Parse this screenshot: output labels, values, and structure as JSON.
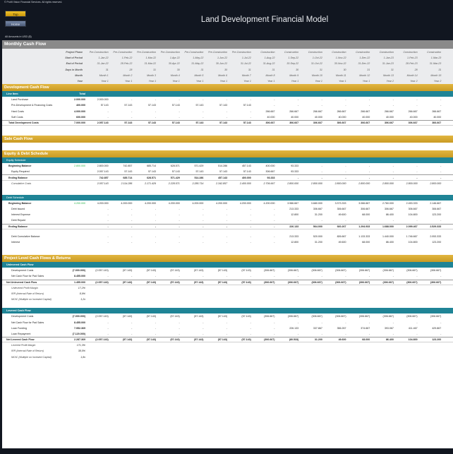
{
  "copyright": "© Profit Vision Financial Services. All rights reserved.",
  "buttons": {
    "top": "Top",
    "home": "Home"
  },
  "title": "Land Development Financial Model",
  "amounts_note": "All Amounts in USD ($)",
  "section_monthly": "Monthly Cash Flow",
  "header_labels": {
    "phase": "Project Phase",
    "start": "Start of Period",
    "end": "End of Period",
    "days": "Days in Month",
    "month": "Month",
    "year": "Year"
  },
  "periods": {
    "phase": [
      "Pre-Construction",
      "Pre-Construction",
      "Pre-Construction",
      "Pre-Construction",
      "Pre-Construction",
      "Pre-Construction",
      "Pre-Construction",
      "Construction",
      "Construction",
      "Construction",
      "Construction",
      "Construction",
      "Construction",
      "Construction",
      "Construction"
    ],
    "start": [
      "1-Jan-22",
      "1-Feb-22",
      "1-Mar-22",
      "1-Apr-22",
      "1-May-22",
      "1-Jun-22",
      "1-Jul-22",
      "1-Aug-22",
      "1-Sep-22",
      "1-Oct-22",
      "1-Nov-22",
      "1-Dec-22",
      "1-Jan-23",
      "1-Feb-23",
      "1-Mar-23"
    ],
    "end": [
      "31-Jan-22",
      "28-Feb-22",
      "31-Mar-22",
      "30-Apr-22",
      "31-May-22",
      "30-Jun-22",
      "31-Jul-22",
      "31-Aug-22",
      "30-Sep-22",
      "31-Oct-22",
      "30-Nov-22",
      "31-Dec-22",
      "31-Jan-23",
      "28-Feb-23",
      "31-Mar-23"
    ],
    "days": [
      "31",
      "28",
      "31",
      "30",
      "31",
      "30",
      "31",
      "31",
      "30",
      "31",
      "30",
      "31",
      "31",
      "28",
      "31"
    ],
    "month": [
      "Month 1",
      "Month 2",
      "Month 3",
      "Month 4",
      "Month 5",
      "Month 6",
      "Month 7",
      "Month 8",
      "Month 9",
      "Month 10",
      "Month 11",
      "Month 12",
      "Month 13",
      "Month 14",
      "Month 15"
    ],
    "year": [
      "Year 1",
      "Year 1",
      "Year 1",
      "Year 1",
      "Year 1",
      "Year 1",
      "Year 1",
      "Year 1",
      "Year 1",
      "Year 1",
      "Year 1",
      "Year 1",
      "Year 2",
      "Year 2",
      "Year 2"
    ]
  },
  "dev_cf": {
    "title": "Development Cash Flow",
    "col_line": "Line Item",
    "col_total": "Total",
    "rows": [
      {
        "label": "Land Purchase",
        "total": "2.000.000",
        "vals": [
          "2.000.000",
          "-",
          "-",
          "-",
          "-",
          "-",
          "-",
          "-",
          "-",
          "-",
          "-",
          "-",
          "-",
          "-",
          "-"
        ]
      },
      {
        "label": "Pre-Development & Financing Costs",
        "total": "400.000",
        "vals": [
          "57.143",
          "57.143",
          "57.143",
          "57.143",
          "57.143",
          "57.143",
          "57.143",
          "-",
          "-",
          "-",
          "-",
          "-",
          "-",
          "-",
          "-"
        ]
      },
      {
        "label": "Hard Costs",
        "total": "4.000.000",
        "vals": [
          "-",
          "-",
          "-",
          "-",
          "-",
          "-",
          "-",
          "266.667",
          "266.667",
          "266.667",
          "266.667",
          "266.667",
          "266.667",
          "266.667",
          "266.667"
        ]
      },
      {
        "label": "Soft Costs",
        "total": "600.000",
        "vals": [
          "-",
          "-",
          "-",
          "-",
          "-",
          "-",
          "-",
          "40.000",
          "40.000",
          "40.000",
          "40.000",
          "40.000",
          "40.000",
          "40.000",
          "40.000"
        ]
      }
    ],
    "total_row": {
      "label": "Total Development Costs",
      "total": "7.000.000",
      "vals": [
        "2.057.143",
        "57.143",
        "57.143",
        "57.143",
        "57.143",
        "57.143",
        "57.143",
        "306.667",
        "306.667",
        "306.667",
        "306.667",
        "306.667",
        "306.667",
        "306.667",
        "306.667"
      ]
    }
  },
  "sale_cf": {
    "title": "Sale Cash Flow"
  },
  "equity_debt": {
    "title": "Equity & Debt Schedule",
    "equity": {
      "title": "Equity Schedule",
      "beginning": {
        "label": "Beginning Balance",
        "total": "2.800.000",
        "vals": [
          "2.800.000",
          "742.857",
          "685.714",
          "628.571",
          "571.429",
          "514.286",
          "457.143",
          "400.000",
          "93.333",
          "-",
          "-",
          "-",
          "-",
          "-",
          "-"
        ]
      },
      "required": {
        "label": "Equity Required",
        "vals": [
          "2.057.143",
          "57.143",
          "57.143",
          "57.143",
          "57.143",
          "57.143",
          "57.143",
          "306.667",
          "93.333",
          "-",
          "-",
          "-",
          "-",
          "-",
          "-"
        ]
      },
      "ending": {
        "label": "Ending Balance",
        "vals": [
          "742.857",
          "685.714",
          "628.571",
          "571.429",
          "514.286",
          "457.143",
          "400.000",
          "93.333",
          "-",
          "-",
          "-",
          "-",
          "-",
          "-",
          "-"
        ]
      },
      "cumulative": {
        "label": "Cumulative Costs",
        "vals": [
          "2.057.143",
          "2.114.286",
          "2.171.429",
          "2.228.571",
          "2.285.714",
          "2.342.857",
          "2.400.000",
          "2.706.667",
          "2.800.000",
          "2.800.000",
          "2.800.000",
          "2.800.000",
          "2.800.000",
          "2.800.000",
          "2.800.000"
        ]
      }
    },
    "debt": {
      "title": "Debt Schedule",
      "beginning": {
        "label": "Beginning Balance",
        "total": "4.200.000",
        "vals": [
          "4.200.000",
          "4.200.000",
          "4.200.000",
          "4.200.000",
          "4.200.000",
          "4.200.000",
          "4.200.000",
          "4.200.000",
          "3.986.667",
          "3.680.000",
          "3.373.333",
          "3.066.667",
          "2.760.000",
          "2.453.333",
          "2.146.667"
        ]
      },
      "issued": {
        "label": "Debt Issued",
        "vals": [
          "-",
          "-",
          "-",
          "-",
          "-",
          "-",
          "-",
          "-",
          "213.333",
          "306.667",
          "306.667",
          "306.667",
          "306.667",
          "306.667",
          "306.667"
        ]
      },
      "interest_exp": {
        "label": "Interest Expense",
        "vals": [
          "-",
          "-",
          "-",
          "-",
          "-",
          "-",
          "-",
          "-",
          "12.800",
          "31.200",
          "49.600",
          "68.000",
          "86.400",
          "104.800",
          "123.200"
        ]
      },
      "repaid": {
        "label": "Debt Repaid",
        "vals": [
          "-",
          "-",
          "-",
          "-",
          "-",
          "-",
          "-",
          "-",
          "-",
          "-",
          "-",
          "-",
          "-",
          "-",
          "-"
        ]
      },
      "ending": {
        "label": "Ending Balance",
        "vals": [
          "-",
          "-",
          "-",
          "-",
          "-",
          "-",
          "-",
          "-",
          "226.133",
          "564.000",
          "920.267",
          "1.294.933",
          "1.688.000",
          "2.099.467",
          "2.529.333"
        ]
      },
      "cum_balance": {
        "label": "Debt Cumulative Balance",
        "vals": [
          "-",
          "-",
          "-",
          "-",
          "-",
          "-",
          "-",
          "-",
          "213.333",
          "520.000",
          "826.667",
          "1.133.333",
          "1.440.000",
          "1.746.667",
          "2.053.333"
        ]
      },
      "interest": {
        "label": "Interest",
        "vals": [
          "-",
          "-",
          "-",
          "-",
          "-",
          "-",
          "-",
          "-",
          "12.800",
          "31.200",
          "49.600",
          "68.000",
          "86.400",
          "104.800",
          "123.200"
        ]
      }
    }
  },
  "project_cf": {
    "title": "Project Level Cash Flows & Returns",
    "unlevered": {
      "title": "Unlevered Cash Flow",
      "rows": [
        {
          "label": "Development Costs",
          "total": "(7.000.000)",
          "vals": [
            "(2.057.143)",
            "(57.143)",
            "(57.143)",
            "(57.143)",
            "(57.143)",
            "(57.143)",
            "(57.143)",
            "(306.667)",
            "(306.667)",
            "(306.667)",
            "(306.667)",
            "(306.667)",
            "(306.667)",
            "(306.667)",
            "(306.667)"
          ]
        },
        {
          "label": "Net Cash Flow for Pad Sales",
          "total": "8.455.000",
          "vals": [
            "-",
            "-",
            "-",
            "-",
            "-",
            "-",
            "-",
            "-",
            "-",
            "-",
            "-",
            "-",
            "-",
            "-",
            "-"
          ]
        }
      ],
      "net": {
        "label": "Net Unlevered Cash Flow",
        "total": "1.455.000",
        "vals": [
          "(2.057.143)",
          "(57.143)",
          "(57.143)",
          "(57.143)",
          "(57.143)",
          "(57.143)",
          "(57.143)",
          "(306.667)",
          "(306.667)",
          "(306.667)",
          "(306.667)",
          "(306.667)",
          "(306.667)",
          "(306.667)",
          "(306.667)"
        ]
      },
      "metrics": [
        {
          "label": "Unlevered Profit Margin",
          "value": "17,2%"
        },
        {
          "label": "IRR (Internal Rate of Return)",
          "value": "8,9%"
        },
        {
          "label": "MOIC (Multiple on Invested Capital)",
          "value": "1,2x"
        }
      ]
    },
    "levered": {
      "title": "Levered Cash Flow",
      "rows": [
        {
          "label": "Development Costs",
          "total": "(7.000.000)",
          "vals": [
            "(2.057.143)",
            "(57.143)",
            "(57.143)",
            "(57.143)",
            "(57.143)",
            "(57.143)",
            "(57.143)",
            "(306.667)",
            "(306.667)",
            "(306.667)",
            "(306.667)",
            "(306.667)",
            "(306.667)",
            "(306.667)",
            "(306.667)"
          ]
        },
        {
          "label": "Net Cash Flow for Pad Sales",
          "total": "8.455.000",
          "vals": [
            "-",
            "-",
            "-",
            "-",
            "-",
            "-",
            "-",
            "-",
            "-",
            "-",
            "-",
            "-",
            "-",
            "-",
            "-"
          ]
        },
        {
          "label": "Loan Funding",
          "total": "7.952.369",
          "vals": [
            "-",
            "-",
            "-",
            "-",
            "-",
            "-",
            "-",
            "-",
            "226.133",
            "337.867",
            "356.267",
            "374.667",
            "393.067",
            "411.467",
            "429.867"
          ]
        },
        {
          "label": "Loan Repayment",
          "total": "(7.120.000)",
          "vals": [
            "-",
            "-",
            "-",
            "-",
            "-",
            "-",
            "-",
            "-",
            "-",
            "-",
            "-",
            "-",
            "-",
            "-",
            "-"
          ]
        }
      ],
      "net": {
        "label": "Net Levered Cash Flow",
        "total": "2.287.369",
        "vals": [
          "(2.057.143)",
          "(57.143)",
          "(57.143)",
          "(57.143)",
          "(57.143)",
          "(57.143)",
          "(57.143)",
          "(306.667)",
          "(80.533)",
          "31.200",
          "49.600",
          "68.000",
          "86.400",
          "104.800",
          "123.200"
        ]
      },
      "metrics": [
        {
          "label": "Levered Profit Margin",
          "value": "171,3%"
        },
        {
          "label": "IRR (Internal Rate of Return)",
          "value": "38,5%"
        },
        {
          "label": "MOIC (Multiple on Invested Capital)",
          "value": "1,8x"
        }
      ]
    }
  }
}
